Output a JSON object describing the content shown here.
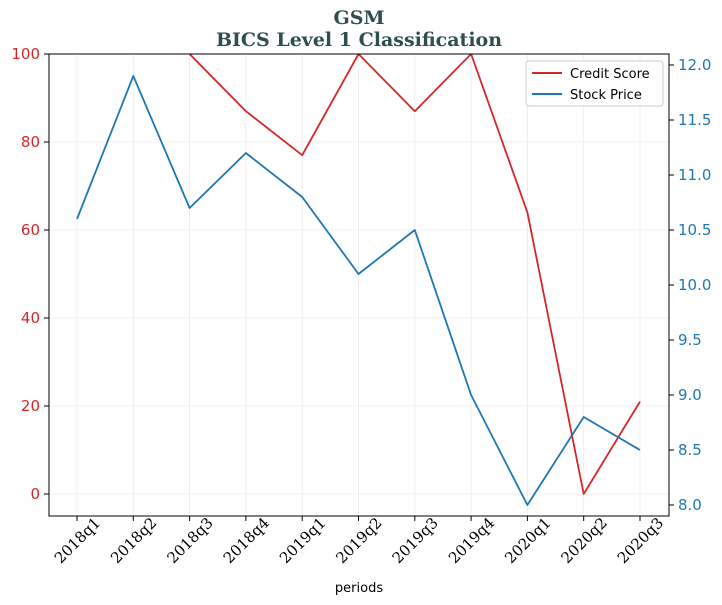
{
  "chart_data": {
    "type": "line",
    "title": "GSM",
    "subtitle": "BICS Level 1 Classification",
    "xlabel": "periods",
    "categories": [
      "2018q1",
      "2018q2",
      "2018q3",
      "2018q4",
      "2019q1",
      "2019q2",
      "2019q3",
      "2019q4",
      "2020q1",
      "2020q2",
      "2020q3"
    ],
    "series": [
      {
        "name": "Credit Score",
        "axis": "left",
        "color": "#d62728",
        "values": [
          null,
          null,
          100,
          87,
          77,
          100,
          87,
          100,
          64,
          0,
          21
        ]
      },
      {
        "name": "Stock Price",
        "axis": "right",
        "color": "#1f77b4",
        "values": [
          10.6,
          11.9,
          10.7,
          11.2,
          10.8,
          10.1,
          10.5,
          9.0,
          8.0,
          8.8,
          8.5
        ]
      }
    ],
    "left_axis": {
      "ylim": [
        -5,
        100
      ],
      "ticks": [
        "0",
        "20",
        "40",
        "60",
        "80",
        "100"
      ],
      "tick_values": [
        0,
        20,
        40,
        60,
        80,
        100
      ],
      "color": "#d62728"
    },
    "right_axis": {
      "ylim": [
        7.9,
        12.1
      ],
      "ticks": [
        "8.0",
        "8.5",
        "9.0",
        "9.5",
        "10.0",
        "10.5",
        "11.0",
        "11.5",
        "12.0"
      ],
      "tick_values": [
        8.0,
        8.5,
        9.0,
        9.5,
        10.0,
        10.5,
        11.0,
        11.5,
        12.0
      ],
      "color": "#1f77b4"
    },
    "grid": true,
    "legend": "top-right"
  }
}
